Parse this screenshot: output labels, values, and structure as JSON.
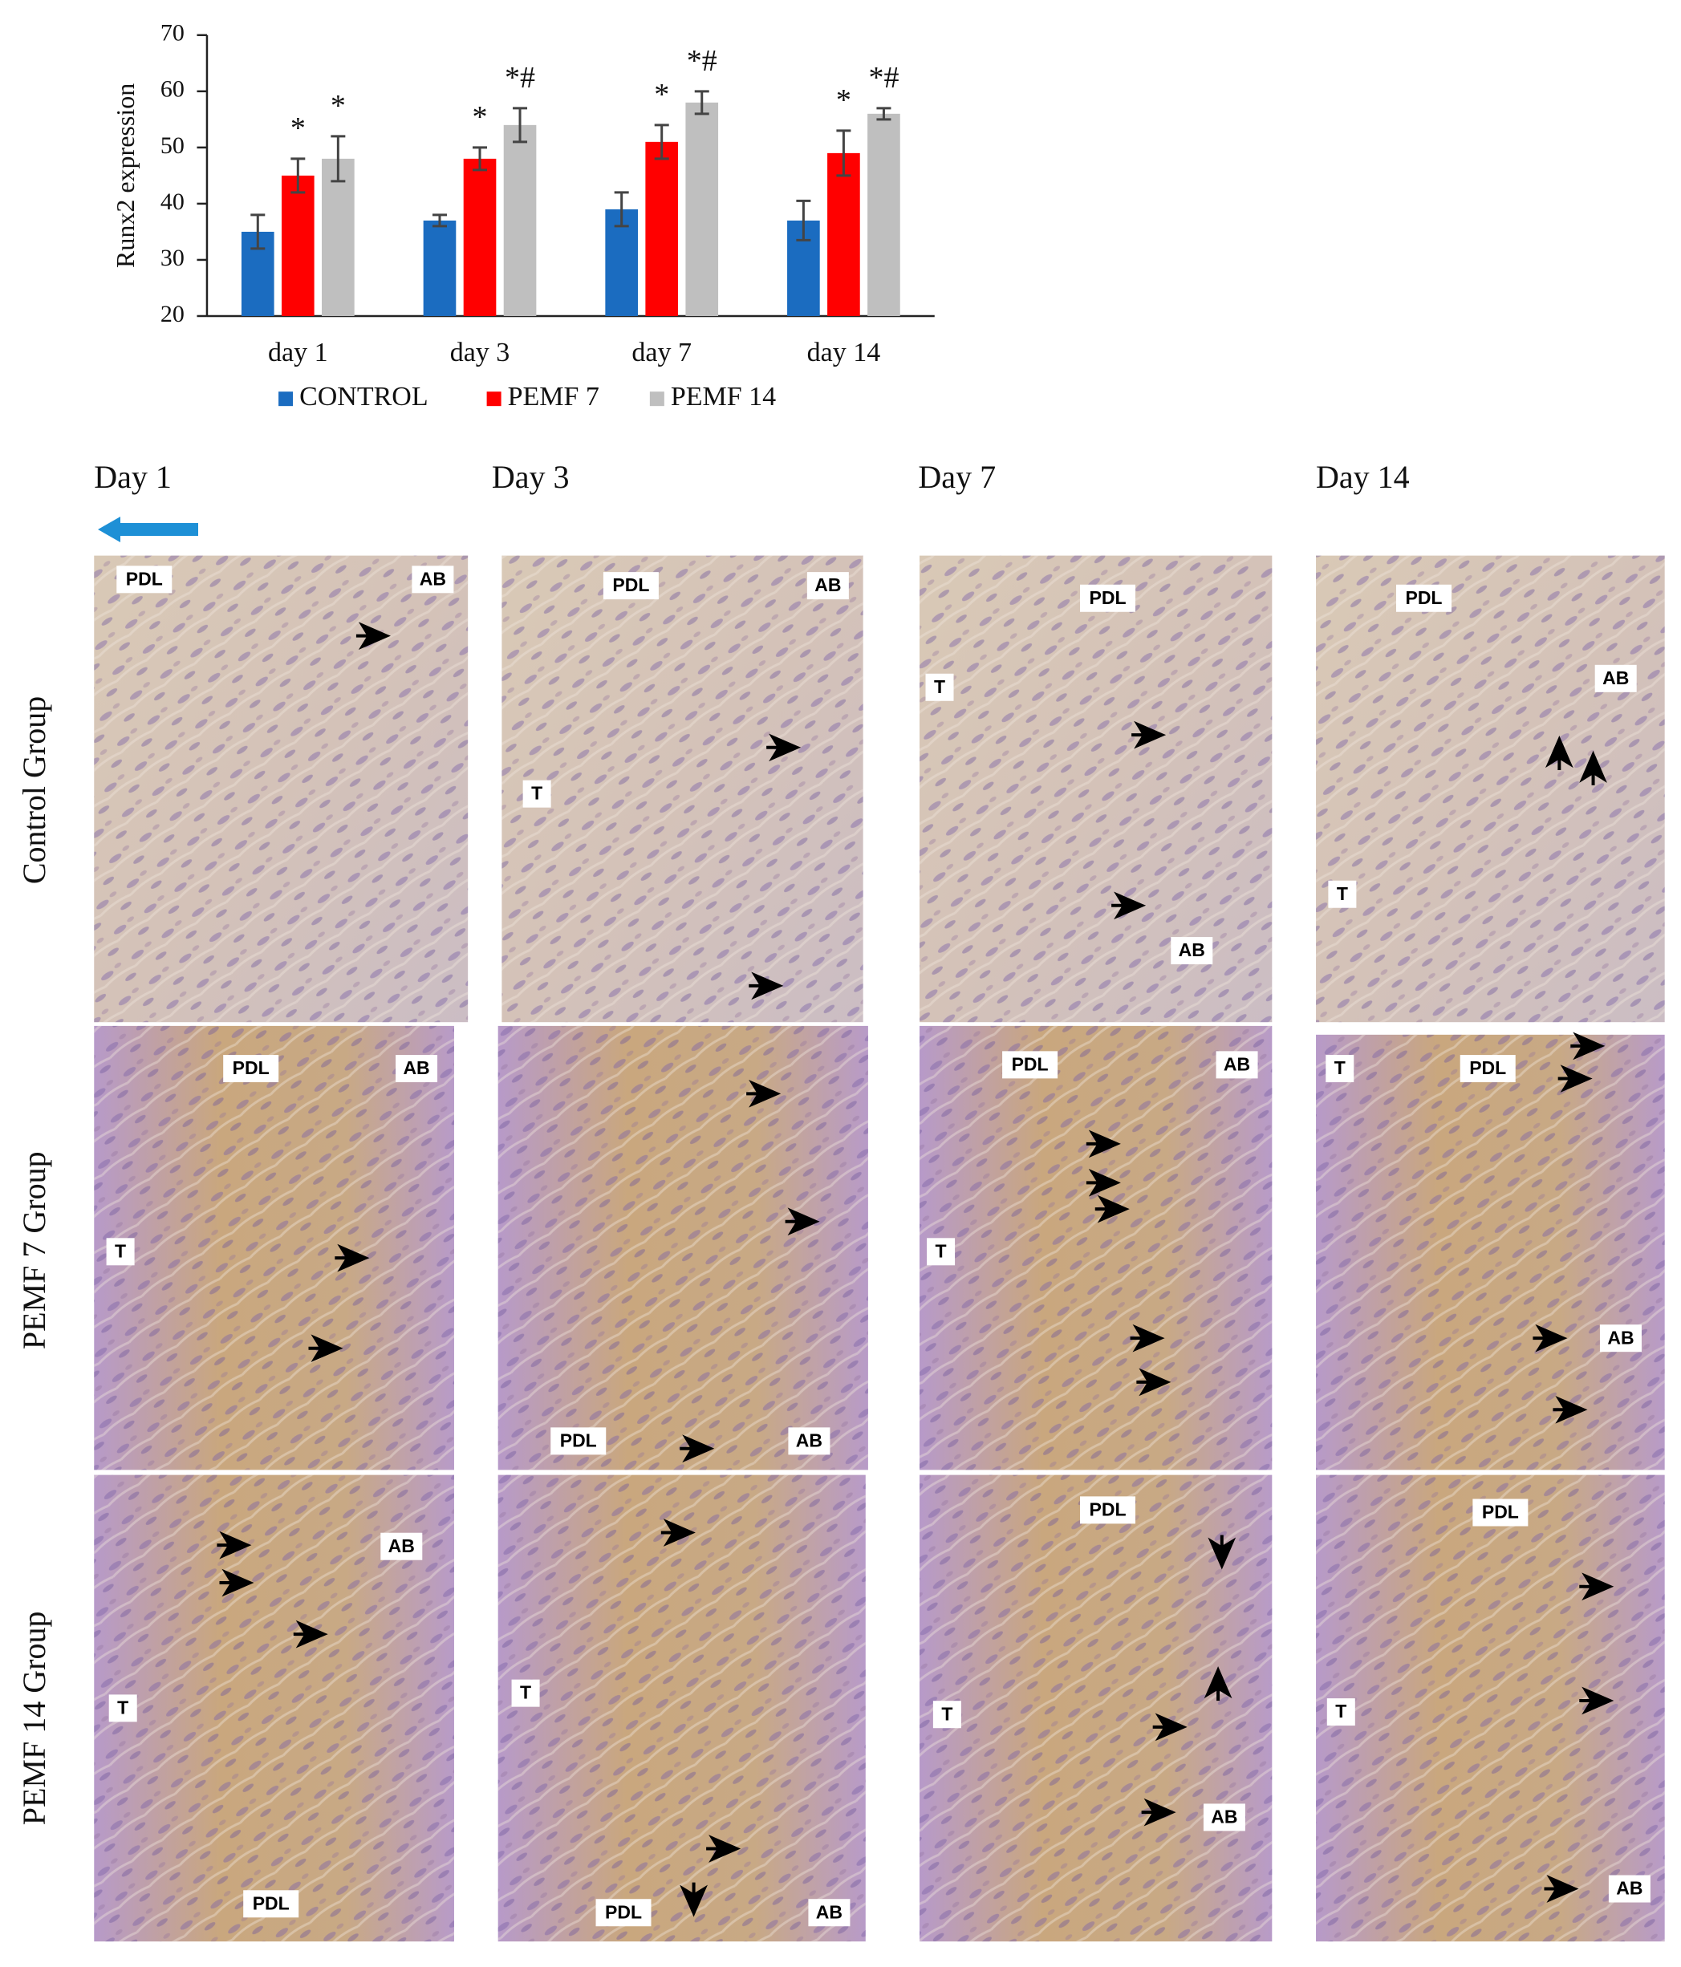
{
  "chart_data": {
    "type": "bar",
    "y_label": "Runx2 expression",
    "categories": [
      "day 1",
      "day 3",
      "day 7",
      "day 14"
    ],
    "series": [
      {
        "name": "CONTROL",
        "color": "#1b6cc0",
        "values": [
          35,
          37,
          39,
          37
        ],
        "errors": [
          3,
          1,
          3,
          3.5
        ],
        "significance": [
          null,
          null,
          null,
          null
        ]
      },
      {
        "name": "PEMF 7",
        "color": "#ff0000",
        "values": [
          45,
          48,
          51,
          49
        ],
        "errors": [
          3,
          2,
          3,
          4
        ],
        "significance": [
          "*",
          "*",
          "*",
          "*"
        ]
      },
      {
        "name": "PEMF 14",
        "color": "#bfbfbf",
        "values": [
          48,
          54,
          58,
          56
        ],
        "errors": [
          4,
          3,
          2,
          1
        ],
        "significance": [
          "*",
          "*#",
          "*#",
          "*#"
        ]
      }
    ],
    "ylim": [
      20,
      70
    ],
    "yticks": [
      20,
      30,
      40,
      50,
      60,
      70
    ],
    "grid": false,
    "legend": "bottom"
  },
  "panels": {
    "columns": [
      "Day 1",
      "Day 3",
      "Day 7",
      "Day 14"
    ],
    "rows": [
      "Control Group",
      "PEMF 7 Group",
      "PEMF 14 Group"
    ],
    "tiles": [
      [
        [
          "PDL",
          "AB"
        ],
        [
          "PDL",
          "AB",
          "T"
        ],
        [
          "PDL",
          "T",
          "AB"
        ],
        [
          "PDL",
          "AB",
          "T"
        ]
      ],
      [
        [
          "PDL",
          "AB",
          "T"
        ],
        [
          "PDL",
          "AB"
        ],
        [
          "PDL",
          "AB",
          "T"
        ],
        [
          "T",
          "PDL",
          "AB"
        ]
      ],
      [
        [
          "AB",
          "T",
          "PDL"
        ],
        [
          "T",
          "PDL",
          "AB"
        ],
        [
          "PDL",
          "T",
          "AB"
        ],
        [
          "PDL",
          "T",
          "AB"
        ]
      ]
    ]
  }
}
